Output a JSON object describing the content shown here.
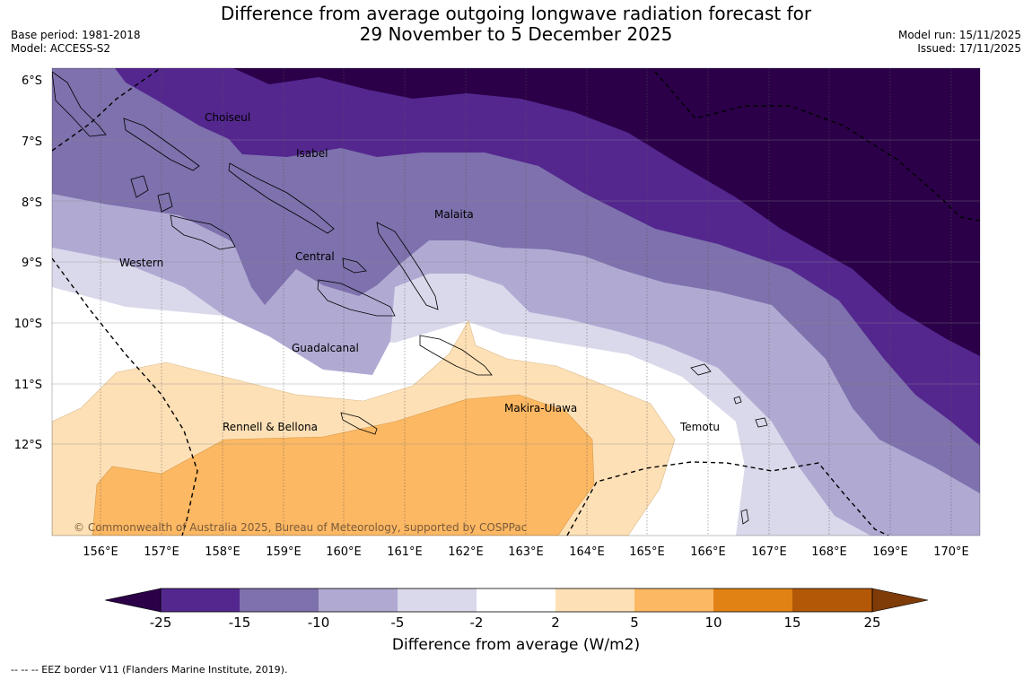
{
  "title": {
    "line1": "Difference from average outgoing longwave radiation forecast for",
    "line2": "29 November to 5 December 2025"
  },
  "meta_left": {
    "base_period": "Base period: 1981-2018",
    "model": "Model: ACCESS-S2"
  },
  "meta_right": {
    "model_run": "Model run: 15/11/2025",
    "issued": "Issued: 17/11/2025"
  },
  "map": {
    "lat_labels": [
      "6°S",
      "7°S",
      "8°S",
      "9°S",
      "10°S",
      "11°S",
      "12°S"
    ],
    "lon_labels": [
      "156°E",
      "157°E",
      "158°E",
      "159°E",
      "160°E",
      "161°E",
      "162°E",
      "163°E",
      "164°E",
      "165°E",
      "166°E",
      "167°E",
      "168°E",
      "169°E",
      "170°E"
    ],
    "regions": [
      "Choiseul",
      "Isabel",
      "Malaita",
      "Western",
      "Central",
      "Guadalcanal",
      "Makira-Ulawa",
      "Rennell & Bellona",
      "Temotu"
    ],
    "copyright": "© Commonwealth of Australia 2025, Bureau of Meteorology, supported by COSPPac"
  },
  "colorbar": {
    "ticks": [
      "-25",
      "-15",
      "-10",
      "-5",
      "-2",
      "2",
      "5",
      "10",
      "15",
      "25"
    ],
    "colors": [
      "#2b0049",
      "#54278f",
      "#7e71ad",
      "#b0aad3",
      "#d9d9eb",
      "#ffffff",
      "#fee0b6",
      "#fdb863",
      "#e08214",
      "#b35806",
      "#7f3b08"
    ],
    "caption": "Difference from average (W/m2)"
  },
  "legend_note": "--  --  -- EEZ border V11 (Flanders Marine Institute, 2019)."
}
